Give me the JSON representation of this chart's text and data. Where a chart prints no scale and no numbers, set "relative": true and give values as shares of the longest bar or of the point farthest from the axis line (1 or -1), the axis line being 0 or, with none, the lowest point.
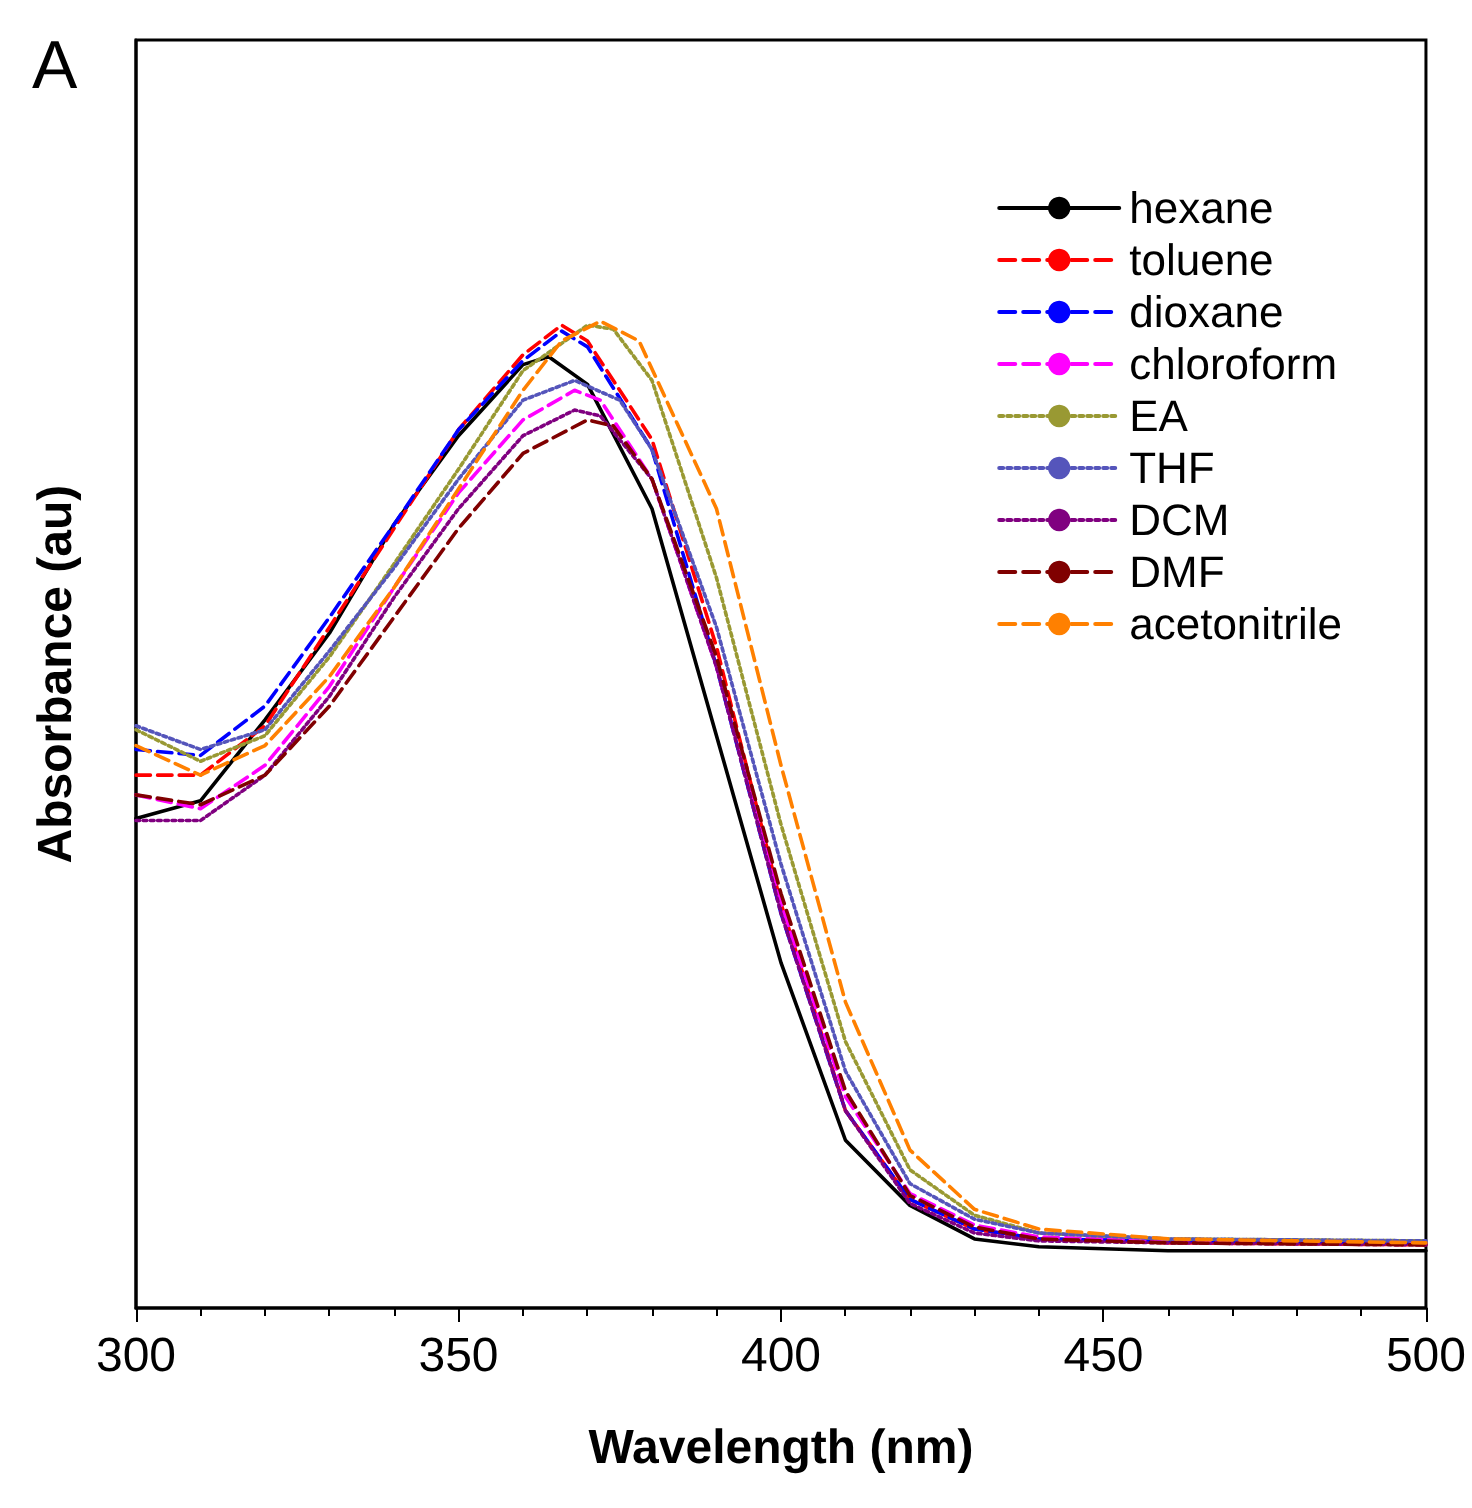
{
  "chart_data": {
    "type": "line",
    "relative": true,
    "xlabel": "Wavelength (nm)",
    "ylabel": "Absorbance (au)",
    "annotations": [
      "A"
    ],
    "xlim": [
      300,
      500
    ],
    "xticks": [
      300,
      350,
      400,
      450,
      500
    ],
    "grid": false,
    "legend": "top right",
    "marker": "none",
    "series": [
      {
        "name": "hexane",
        "color": "#000000",
        "line_style": "solid",
        "x": [
          300,
          310,
          320,
          330,
          340,
          350,
          360,
          364,
          370,
          380,
          390,
          400,
          410,
          420,
          430,
          440,
          460,
          500
        ],
        "values": [
          0.496,
          0.514,
          0.596,
          0.684,
          0.794,
          0.884,
          0.956,
          0.964,
          0.936,
          0.81,
          0.58,
          0.35,
          0.17,
          0.104,
          0.07,
          0.062,
          0.058,
          0.058
        ]
      },
      {
        "name": "toluene",
        "color": "#ff0000",
        "line_style": "dashed",
        "x": [
          300,
          310,
          320,
          330,
          340,
          350,
          360,
          366,
          370,
          380,
          390,
          400,
          410,
          420,
          430,
          440,
          460,
          500
        ],
        "values": [
          0.54,
          0.54,
          0.59,
          0.69,
          0.79,
          0.89,
          0.966,
          0.996,
          0.98,
          0.88,
          0.67,
          0.41,
          0.2,
          0.11,
          0.08,
          0.07,
          0.066,
          0.064
        ]
      },
      {
        "name": "dioxane",
        "color": "#0000ff",
        "line_style": "dashed",
        "x": [
          300,
          310,
          320,
          330,
          340,
          350,
          360,
          366,
          370,
          380,
          390,
          400,
          410,
          420,
          430,
          440,
          460,
          500
        ],
        "values": [
          0.566,
          0.56,
          0.61,
          0.7,
          0.794,
          0.89,
          0.96,
          0.99,
          0.974,
          0.87,
          0.65,
          0.4,
          0.2,
          0.11,
          0.08,
          0.07,
          0.068,
          0.066
        ]
      },
      {
        "name": "chloroform",
        "color": "#ff00ff",
        "line_style": "dashed",
        "x": [
          300,
          310,
          320,
          330,
          340,
          350,
          360,
          368,
          372,
          380,
          390,
          400,
          410,
          420,
          430,
          440,
          460,
          500
        ],
        "values": [
          0.52,
          0.506,
          0.55,
          0.63,
          0.73,
          0.826,
          0.9,
          0.93,
          0.92,
          0.84,
          0.65,
          0.41,
          0.214,
          0.116,
          0.084,
          0.072,
          0.068,
          0.066
        ]
      },
      {
        "name": "EA",
        "color": "#999933",
        "line_style": "dotted",
        "x": [
          300,
          310,
          320,
          330,
          340,
          350,
          360,
          370,
          374,
          380,
          390,
          400,
          410,
          420,
          430,
          440,
          460,
          500
        ],
        "values": [
          0.586,
          0.554,
          0.58,
          0.66,
          0.754,
          0.85,
          0.95,
          0.996,
          0.992,
          0.94,
          0.74,
          0.49,
          0.27,
          0.14,
          0.094,
          0.076,
          0.07,
          0.068
        ]
      },
      {
        "name": "THF",
        "color": "#5555bb",
        "line_style": "dotted",
        "x": [
          300,
          310,
          320,
          330,
          340,
          350,
          360,
          368,
          375,
          380,
          390,
          400,
          410,
          420,
          430,
          440,
          460,
          500
        ],
        "values": [
          0.59,
          0.566,
          0.586,
          0.666,
          0.75,
          0.84,
          0.92,
          0.94,
          0.92,
          0.87,
          0.69,
          0.45,
          0.24,
          0.126,
          0.09,
          0.076,
          0.07,
          0.068
        ]
      },
      {
        "name": "DCM",
        "color": "#800080",
        "line_style": "dotted",
        "x": [
          300,
          310,
          320,
          330,
          340,
          350,
          360,
          368,
          372,
          380,
          390,
          400,
          410,
          420,
          430,
          440,
          460,
          500
        ],
        "values": [
          0.494,
          0.494,
          0.54,
          0.62,
          0.72,
          0.81,
          0.884,
          0.91,
          0.904,
          0.84,
          0.65,
          0.4,
          0.2,
          0.106,
          0.076,
          0.068,
          0.066,
          0.064
        ]
      },
      {
        "name": "DMF",
        "color": "#800000",
        "line_style": "dashed",
        "x": [
          300,
          310,
          320,
          330,
          340,
          350,
          360,
          370,
          374,
          380,
          390,
          400,
          410,
          420,
          430,
          440,
          460,
          500
        ],
        "values": [
          0.52,
          0.51,
          0.54,
          0.61,
          0.7,
          0.79,
          0.866,
          0.9,
          0.894,
          0.84,
          0.66,
          0.42,
          0.22,
          0.114,
          0.082,
          0.07,
          0.066,
          0.064
        ]
      },
      {
        "name": "acetonitrile",
        "color": "#ff8000",
        "line_style": "dashed",
        "x": [
          300,
          310,
          320,
          330,
          340,
          350,
          360,
          366,
          372,
          378,
          390,
          400,
          410,
          420,
          430,
          440,
          460,
          500
        ],
        "values": [
          0.57,
          0.54,
          0.57,
          0.64,
          0.73,
          0.83,
          0.93,
          0.98,
          1.0,
          0.98,
          0.81,
          0.55,
          0.31,
          0.16,
          0.1,
          0.08,
          0.07,
          0.066
        ]
      }
    ]
  }
}
